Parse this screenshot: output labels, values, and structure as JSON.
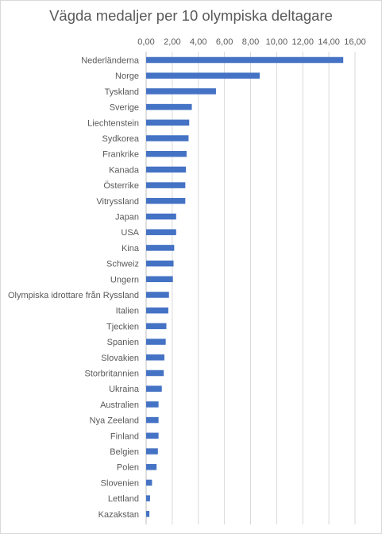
{
  "chart_data": {
    "type": "bar",
    "orientation": "horizontal",
    "title": "Vägda medaljer per 10 olympiska deltagare",
    "xlabel": "",
    "ylabel": "",
    "xlim": [
      0,
      16
    ],
    "xticks": [
      "0,00",
      "2,00",
      "4,00",
      "6,00",
      "8,00",
      "10,00",
      "12,00",
      "14,00",
      "16,00"
    ],
    "xaxis_position": "top",
    "grid": true,
    "legend": "none",
    "bar_color": "#4472c4",
    "categories": [
      "Nederländerna",
      "Norge",
      "Tyskland",
      "Sverige",
      "Liechtenstein",
      "Sydkorea",
      "Frankrike",
      "Kanada",
      "Österrike",
      "Vitryssland",
      "Japan",
      "USA",
      "Kina",
      "Schweiz",
      "Ungern",
      "Olympiska idrottare från Ryssland",
      "Italien",
      "Tjeckien",
      "Spanien",
      "Slovakien",
      "Storbritannien",
      "Ukraina",
      "Australien",
      "Nya Zeeland",
      "Finland",
      "Belgien",
      "Polen",
      "Slovenien",
      "Lettland",
      "Kazakstan"
    ],
    "values": [
      15.1,
      8.7,
      5.35,
      3.5,
      3.3,
      3.25,
      3.1,
      3.05,
      3.0,
      3.0,
      2.3,
      2.3,
      2.15,
      2.1,
      2.05,
      1.75,
      1.7,
      1.55,
      1.5,
      1.4,
      1.35,
      1.2,
      0.95,
      0.95,
      0.95,
      0.9,
      0.8,
      0.45,
      0.3,
      0.25
    ]
  }
}
